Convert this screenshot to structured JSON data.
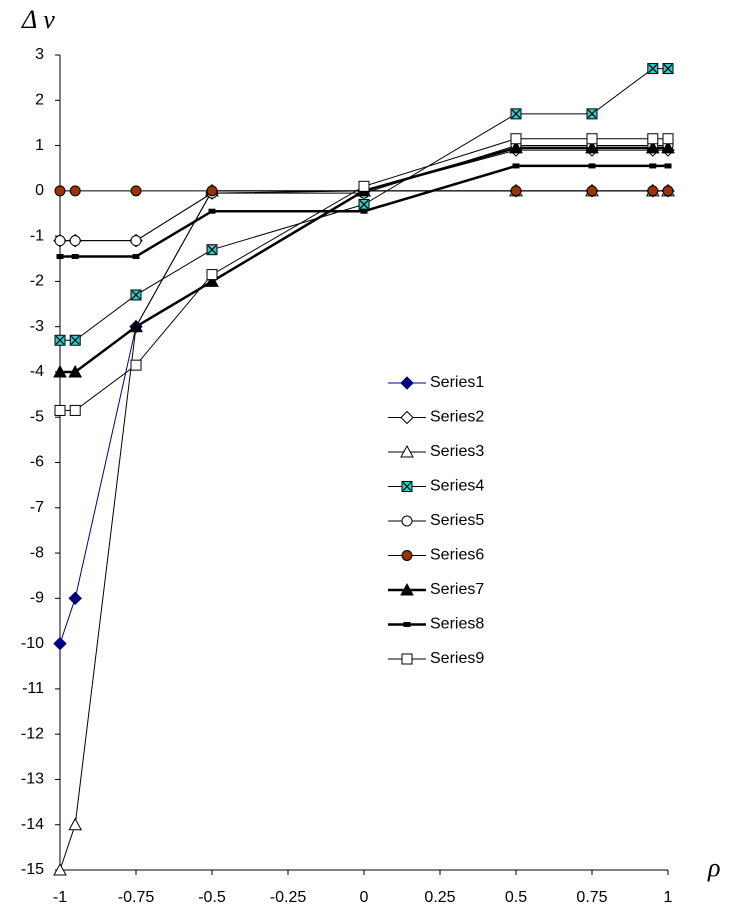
{
  "chart_data": {
    "type": "line",
    "y_label": "Δ ν",
    "x_label": "ρ",
    "x": [
      -1,
      -0.95,
      -0.75,
      -0.5,
      0,
      0.5,
      0.75,
      0.95,
      1
    ],
    "xlim": [
      -1,
      1
    ],
    "xticks": [
      -1,
      -0.75,
      -0.5,
      -0.25,
      0,
      0.25,
      0.5,
      0.75,
      1
    ],
    "ylim": [
      -15,
      3
    ],
    "yticks": [
      -15,
      -14,
      -13,
      -12,
      -11,
      -10,
      -9,
      -8,
      -7,
      -6,
      -5,
      -4,
      -3,
      -2,
      -1,
      0,
      1,
      2,
      3
    ],
    "grid": false,
    "legend": "center",
    "series": [
      {
        "name": "Series1",
        "color": "#000080",
        "marker": "diamond",
        "marker_fill": "#000080",
        "line_width": 1,
        "values": [
          -10,
          -9,
          -3,
          0,
          0,
          0,
          0,
          0,
          0
        ]
      },
      {
        "name": "Series2",
        "color": "#000000",
        "marker": "diamond",
        "marker_fill": "#ffffff",
        "line_width": 1,
        "values": [
          -1.1,
          -1.1,
          -1.1,
          -0.05,
          0,
          0.9,
          0.9,
          0.9,
          0.9
        ]
      },
      {
        "name": "Series3",
        "color": "#000000",
        "marker": "triangle",
        "marker_fill": "#ffffff",
        "line_width": 1,
        "values": [
          -15,
          -14,
          -3,
          0,
          0,
          0,
          0,
          0,
          0
        ]
      },
      {
        "name": "Series4",
        "color": "#000000",
        "marker": "square-x",
        "marker_fill": "#33cccc",
        "line_width": 1,
        "values": [
          -3.3,
          -3.3,
          -2.3,
          -1.3,
          -0.3,
          1.7,
          1.7,
          2.7,
          2.7
        ]
      },
      {
        "name": "Series5",
        "color": "#000000",
        "marker": "circle",
        "marker_fill": "#ffffff",
        "line_width": 1,
        "values": [
          -1.1,
          -1.1,
          -1.1,
          -0.05,
          -0.05,
          1,
          1,
          1,
          1
        ]
      },
      {
        "name": "Series6",
        "color": "#000000",
        "marker": "circle",
        "marker_fill": "#993300",
        "line_width": 1,
        "values": [
          0,
          0,
          0,
          0,
          0,
          0,
          0,
          0,
          0
        ]
      },
      {
        "name": "Series7",
        "color": "#000000",
        "marker": "triangle",
        "marker_fill": "#000000",
        "line_width": 2.5,
        "values": [
          -4,
          -4,
          -3,
          -2,
          0,
          0.95,
          0.95,
          0.95,
          0.95
        ]
      },
      {
        "name": "Series8",
        "color": "#000000",
        "marker": "dash",
        "marker_fill": "#000000",
        "line_width": 2.5,
        "values": [
          -1.45,
          -1.45,
          -1.45,
          -0.45,
          -0.45,
          0.55,
          0.55,
          0.55,
          0.55
        ]
      },
      {
        "name": "Series9",
        "color": "#000000",
        "marker": "square",
        "marker_fill": "#ffffff",
        "line_width": 1,
        "values": [
          -4.85,
          -4.85,
          -3.85,
          -1.85,
          0.1,
          1.15,
          1.15,
          1.15,
          1.15
        ]
      }
    ]
  }
}
